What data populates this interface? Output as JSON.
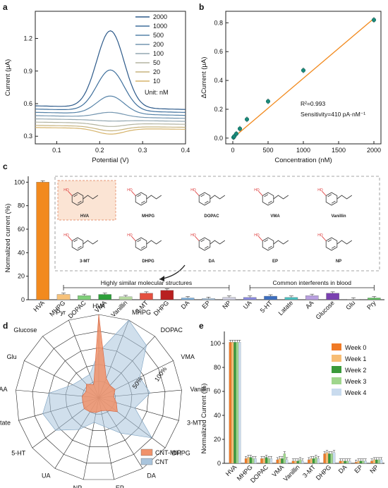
{
  "panels": {
    "a": {
      "label": "a",
      "chart_data": {
        "type": "line",
        "xlabel": "Potential (V)",
        "ylabel": "Current (μA)",
        "xlim": [
          0.05,
          0.4
        ],
        "ylim": [
          0.23,
          1.45
        ],
        "xticks": [
          "0.1",
          "0.2",
          "0.3",
          "0.4"
        ],
        "yticks": [
          "0.3",
          "0.6",
          "0.9",
          "1.2"
        ],
        "unit_text": "Unit: nM",
        "series": [
          {
            "name": "2000",
            "color": "#2d5a8a",
            "base": 0.58,
            "peak": 1.27
          },
          {
            "name": "1000",
            "color": "#3e6f9c",
            "base": 0.55,
            "peak": 0.91
          },
          {
            "name": "500",
            "color": "#5683a8",
            "base": 0.52,
            "peak": 0.67
          },
          {
            "name": "200",
            "color": "#7496b0",
            "base": 0.49,
            "peak": 0.52
          },
          {
            "name": "100",
            "color": "#93a7b0",
            "base": 0.46,
            "peak": 0.44
          },
          {
            "name": "50",
            "color": "#b3b4a0",
            "base": 0.43,
            "peak": 0.39
          },
          {
            "name": "20",
            "color": "#c7b37e",
            "base": 0.4,
            "peak": 0.35
          },
          {
            "name": "10",
            "color": "#d6b36a",
            "base": 0.38,
            "peak": 0.32
          }
        ]
      }
    },
    "b": {
      "label": "b",
      "chart_data": {
        "type": "scatter",
        "xlabel": "Concentration (nM)",
        "ylabel": "ΔCurrent (μA)",
        "xlim": [
          -100,
          2100
        ],
        "ylim": [
          -0.04,
          0.88
        ],
        "xticks": [
          "0",
          "500",
          "1000",
          "1500",
          "2000"
        ],
        "yticks": [
          "0.0",
          "0.2",
          "0.4",
          "0.6",
          "0.8"
        ],
        "x": [
          10,
          20,
          50,
          100,
          200,
          500,
          1000,
          2000
        ],
        "y": [
          0.005,
          0.012,
          0.03,
          0.065,
          0.13,
          0.255,
          0.47,
          0.82
        ],
        "fit": {
          "x": [
            0,
            2000
          ],
          "y": [
            0.0,
            0.83
          ],
          "color": "#f28a1e"
        },
        "marker_color": "#1a8a7a",
        "r2_text": "R²=0.993",
        "sensitivity_text": "Sensitivity=410 pA·nM⁻¹"
      }
    },
    "c": {
      "label": "c",
      "chart_data": {
        "type": "bar",
        "ylabel": "Normalized current (%)",
        "ylim": [
          0,
          105
        ],
        "yticks": [
          "0",
          "20",
          "40",
          "60",
          "80",
          "100"
        ],
        "categories": [
          "HVA",
          "MHPG",
          "DOPAC",
          "VMA",
          "Vanillin",
          "3-MT",
          "DHPG",
          "DA",
          "EP",
          "NP",
          "UA",
          "5-HT",
          "Latate",
          "AA",
          "Glucose",
          "Glu",
          "Pry"
        ],
        "values": [
          100,
          4.5,
          3.5,
          4.5,
          2.5,
          5.5,
          8,
          1.5,
          1,
          2,
          2,
          3,
          2,
          3.5,
          5.5,
          0.5,
          1.5
        ],
        "colors": [
          "#f28a1e",
          "#f7c27a",
          "#7fcf7a",
          "#2ea03a",
          "#b7d9a2",
          "#e35040",
          "#b82020",
          "#7fb3e0",
          "#a9c9e8",
          "#cfcfe0",
          "#8a8ae0",
          "#3d6fc0",
          "#4ac0c0",
          "#b9a0e0",
          "#7a40b0",
          "#d8d8d8",
          "#60c060"
        ],
        "bracket1": "Highly similar molecular structures",
        "bracket2": "Common interferents in blood",
        "structures": [
          {
            "name": "HVA"
          },
          {
            "name": "MHPG"
          },
          {
            "name": "DOPAC"
          },
          {
            "name": "VMA"
          },
          {
            "name": "Vanillin"
          },
          {
            "name": "3-MT"
          },
          {
            "name": "DHPG"
          },
          {
            "name": "DA"
          },
          {
            "name": "EP"
          },
          {
            "name": "NP"
          }
        ]
      }
    },
    "d": {
      "label": "d",
      "chart_data": {
        "type": "radar",
        "axes": [
          "HVA",
          "MHPG",
          "DOPAC",
          "VMA",
          "Vanillin",
          "3-MT",
          "DHPG",
          "DA",
          "EP",
          "NP",
          "UA",
          "5-HT",
          "Latate",
          "AA",
          "Glu",
          "Glucose",
          "Pyr"
        ],
        "rings": [
          "50%",
          "100%"
        ],
        "series": [
          {
            "name": "CNT-MIP",
            "color": "#f0926a",
            "values": [
              1.0,
              0.25,
              0.2,
              0.22,
              0.18,
              0.22,
              0.28,
              0.18,
              0.16,
              0.18,
              0.2,
              0.22,
              0.2,
              0.2,
              0.17,
              0.22,
              0.17
            ]
          },
          {
            "name": "CNT",
            "color": "#a9c4dc",
            "values": [
              0.55,
              1.0,
              0.85,
              0.55,
              0.62,
              0.45,
              0.8,
              0.5,
              0.35,
              0.3,
              0.45,
              0.65,
              0.7,
              0.6,
              0.35,
              0.3,
              0.3
            ]
          }
        ]
      }
    },
    "e": {
      "label": "e",
      "chart_data": {
        "type": "bar",
        "ylabel": "Normalized Current (%)",
        "ylim": [
          0,
          110
        ],
        "yticks": [
          "0",
          "20",
          "40",
          "60",
          "80",
          "100"
        ],
        "categories": [
          "HVA",
          "MHPG",
          "DOPAC",
          "VMA",
          "Vanillin",
          "3-MT",
          "DHPG",
          "DA",
          "EP",
          "NP"
        ],
        "series": [
          {
            "name": "Week 0",
            "color": "#f07a26",
            "values": [
              101,
              4,
              4,
              3,
              2,
              3,
              8,
              2,
              1,
              2
            ]
          },
          {
            "name": "Week 1",
            "color": "#f7bd74",
            "values": [
              101,
              5,
              4,
              4,
              2,
              4,
              9,
              2,
              2,
              3
            ]
          },
          {
            "name": "Week 2",
            "color": "#3a9a3a",
            "values": [
              101,
              5,
              5,
              4,
              2,
              4,
              8,
              2,
              2,
              3
            ]
          },
          {
            "name": "Week 3",
            "color": "#9fd68c",
            "values": [
              101,
              4,
              4,
              8,
              3,
              5,
              8,
              2,
              2,
              3
            ]
          },
          {
            "name": "Week 4",
            "color": "#c9dbee",
            "values": [
              101,
              4,
              4,
              3,
              2,
              4,
              9,
              2,
              2,
              3
            ]
          }
        ]
      }
    }
  }
}
